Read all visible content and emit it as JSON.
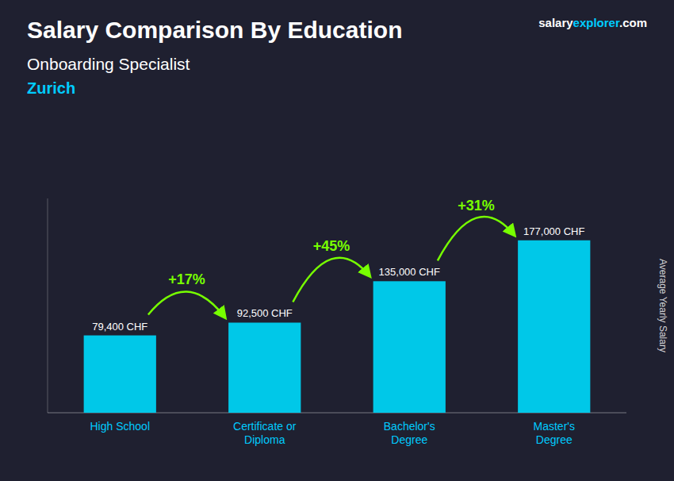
{
  "chart_data": {
    "type": "bar",
    "title": "Salary Comparison By Education",
    "subtitle": "Onboarding Specialist",
    "location": "Zurich",
    "watermark": [
      "salary",
      "explorer",
      ".com"
    ],
    "ylabel": "Average Yearly Salary",
    "categories": [
      "High School",
      "Certificate or\nDiploma",
      "Bachelor's\nDegree",
      "Master's\nDegree"
    ],
    "values": [
      79400,
      92500,
      135000,
      177000
    ],
    "value_labels": [
      "79,400 CHF",
      "92,500 CHF",
      "135,000 CHF",
      "177,000 CHF"
    ],
    "annotations": [
      "+17%",
      "+45%",
      "+31%"
    ],
    "color": "#00c8e8",
    "ylim": [
      0,
      220000
    ],
    "grid": false,
    "tick_labels": false,
    "data_labels": true
  }
}
